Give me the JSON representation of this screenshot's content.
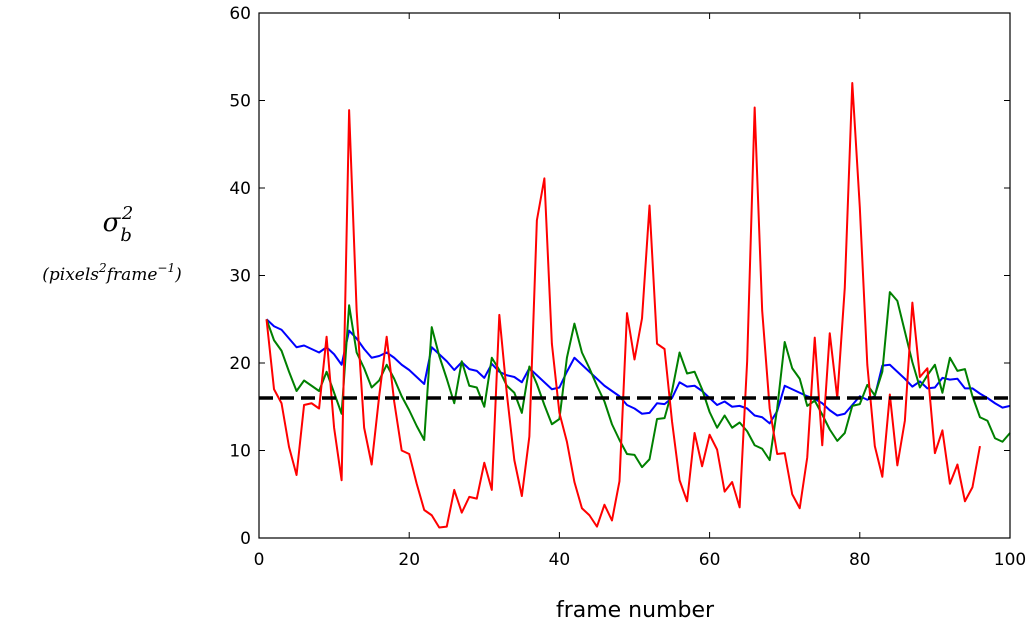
{
  "chart_data": {
    "type": "line",
    "xlabel": "frame number",
    "ylabel": {
      "symbol": "σ",
      "subscript": "b",
      "superscript": "2",
      "unit_open": "(pixels",
      "unit_sup1": "2",
      "unit_mid": "frame",
      "unit_sup2": "−1",
      "unit_close": ")"
    },
    "xlim": [
      0,
      100
    ],
    "ylim": [
      0,
      60
    ],
    "xticks": [
      0,
      20,
      40,
      60,
      80,
      100
    ],
    "yticks": [
      0,
      10,
      20,
      30,
      40,
      50,
      60
    ],
    "grid": false,
    "reference_line": {
      "y": 16,
      "color": "#000000",
      "style": "dashed"
    },
    "series": [
      {
        "color": "#0000ff",
        "x": [
          1,
          2,
          3,
          4,
          5,
          6,
          7,
          8,
          9,
          10,
          11,
          12,
          13,
          14,
          15,
          16,
          17,
          18,
          19,
          20,
          21,
          22,
          23,
          24,
          25,
          26,
          27,
          28,
          29,
          30,
          31,
          32,
          33,
          34,
          35,
          36,
          37,
          38,
          39,
          40,
          41,
          42,
          43,
          44,
          45,
          46,
          47,
          48,
          49,
          50,
          51,
          52,
          53,
          54,
          55,
          56,
          57,
          58,
          59,
          60,
          61,
          62,
          63,
          64,
          65,
          66,
          67,
          68,
          69,
          70,
          71,
          72,
          73,
          74,
          75,
          76,
          77,
          78,
          79,
          80,
          81,
          82,
          83,
          84,
          85,
          86,
          87,
          88,
          89,
          90,
          91,
          92,
          93,
          94,
          95,
          96,
          97,
          98,
          99,
          100
        ],
        "y": [
          25,
          24.2,
          23.8,
          22.8,
          21.8,
          22,
          21.6,
          21.2,
          21.8,
          21,
          19.8,
          23.7,
          22.8,
          21.6,
          20.6,
          20.8,
          21.2,
          20.6,
          19.8,
          19.2,
          18.4,
          17.6,
          21.8,
          21,
          20.2,
          19.2,
          20.1,
          19.3,
          19.1,
          18.3,
          19.9,
          19,
          18.6,
          18.4,
          17.8,
          19.4,
          18.6,
          17.8,
          17,
          17.2,
          19,
          20.6,
          19.8,
          19,
          18.2,
          17.4,
          16.8,
          16.2,
          15.2,
          14.8,
          14.2,
          14.3,
          15.4,
          15.3,
          16,
          17.8,
          17.3,
          17.4,
          16.8,
          16,
          15.2,
          15.6,
          15,
          15.1,
          14.8,
          14,
          13.8,
          13.1,
          14.5,
          17.4,
          17,
          16.6,
          16.2,
          15.9,
          15.4,
          14.6,
          14,
          14.2,
          15.2,
          16.2,
          15.8,
          16.2,
          19.7,
          19.8,
          19,
          18.2,
          17.3,
          17.9,
          17.1,
          17.2,
          18.3,
          18.1,
          18.2,
          17.1,
          17.1,
          16.5,
          16,
          15.4,
          14.9,
          15.1
        ]
      },
      {
        "color": "#008000",
        "x": [
          1,
          2,
          3,
          4,
          5,
          6,
          7,
          8,
          9,
          10,
          11,
          12,
          13,
          14,
          15,
          16,
          17,
          18,
          19,
          20,
          21,
          22,
          23,
          24,
          25,
          26,
          27,
          28,
          29,
          30,
          31,
          32,
          33,
          34,
          35,
          36,
          37,
          38,
          39,
          40,
          41,
          42,
          43,
          44,
          45,
          46,
          47,
          48,
          49,
          50,
          51,
          52,
          53,
          54,
          55,
          56,
          57,
          58,
          59,
          60,
          61,
          62,
          63,
          64,
          65,
          66,
          67,
          68,
          69,
          70,
          71,
          72,
          73,
          74,
          75,
          76,
          77,
          78,
          79,
          80,
          81,
          82,
          83,
          84,
          85,
          86,
          87,
          88,
          89,
          90,
          91,
          92,
          93,
          94,
          95,
          96,
          97,
          98,
          99,
          100
        ],
        "y": [
          25,
          22.6,
          21.4,
          19,
          16.8,
          18,
          17.4,
          16.8,
          19,
          16.6,
          14.2,
          26.6,
          21.2,
          19.4,
          17.2,
          18,
          19.8,
          18.2,
          16.2,
          14.6,
          12.8,
          11.2,
          24.1,
          20.8,
          18.2,
          15.4,
          20.2,
          17.4,
          17.2,
          15,
          20.6,
          19.2,
          17.4,
          16.6,
          14.3,
          19.6,
          17.6,
          15.2,
          13,
          13.6,
          20.6,
          24.5,
          21.2,
          19.4,
          17.4,
          15.6,
          13,
          11.2,
          9.6,
          9.5,
          8.1,
          9,
          13.6,
          13.7,
          16.8,
          21.2,
          18.8,
          19,
          17,
          14.4,
          12.6,
          14,
          12.6,
          13.2,
          12.2,
          10.6,
          10.2,
          8.9,
          14.8,
          22.4,
          19.4,
          18.2,
          15.1,
          15.7,
          14.1,
          12.4,
          11.1,
          12,
          15.1,
          15.3,
          17.5,
          16.3,
          19,
          28.1,
          27.1,
          23.6,
          20.1,
          17.2,
          18.6,
          19.8,
          16.6,
          20.6,
          19.1,
          19.3,
          16.2,
          13.8,
          13.4,
          11.4,
          11,
          12
        ]
      },
      {
        "color": "#ff0000",
        "x": [
          1,
          2,
          3,
          4,
          5,
          6,
          7,
          8,
          9,
          10,
          11,
          12,
          13,
          14,
          15,
          16,
          17,
          18,
          19,
          20,
          21,
          22,
          23,
          24,
          25,
          26,
          27,
          28,
          29,
          30,
          31,
          32,
          33,
          34,
          35,
          36,
          37,
          38,
          39,
          40,
          41,
          42,
          43,
          44,
          45,
          46,
          47,
          48,
          49,
          50,
          51,
          52,
          53,
          54,
          55,
          56,
          57,
          58,
          59,
          60,
          61,
          62,
          63,
          64,
          65,
          66,
          67,
          68,
          69,
          70,
          71,
          72,
          73,
          74,
          75,
          76,
          77,
          78,
          79,
          80,
          81,
          82,
          83,
          84,
          85,
          86,
          87,
          88,
          89,
          90,
          91,
          92,
          93,
          94,
          95,
          96
        ],
        "y": [
          25,
          17,
          15.4,
          10.4,
          7.2,
          15.2,
          15.4,
          14.8,
          23,
          12.6,
          6.6,
          48.9,
          26,
          12.6,
          8.4,
          16.2,
          23,
          15.6,
          10,
          9.6,
          6.2,
          3.2,
          2.6,
          1.2,
          1.3,
          5.5,
          2.9,
          4.7,
          4.5,
          8.6,
          5.5,
          25.5,
          16.5,
          8.9,
          4.8,
          11.6,
          36.3,
          41.1,
          22.2,
          14.3,
          11,
          6.4,
          3.4,
          2.6,
          1.3,
          3.8,
          2,
          6.5,
          25.7,
          20.4,
          25.1,
          38,
          22.2,
          21.6,
          13.3,
          6.6,
          4.2,
          12,
          8.2,
          11.8,
          10.1,
          5.3,
          6.4,
          3.5,
          20.2,
          49.2,
          26,
          14.8,
          9.6,
          9.7,
          5,
          3.4,
          9.2,
          22.9,
          10.6,
          23.4,
          16,
          28.6,
          52,
          37.8,
          19.8,
          10.5,
          7,
          16.4,
          8.3,
          13.4,
          26.9,
          18.4,
          19.4,
          9.7,
          12.3,
          6.2,
          8.4,
          4.2,
          5.8,
          10.5
        ]
      }
    ]
  }
}
